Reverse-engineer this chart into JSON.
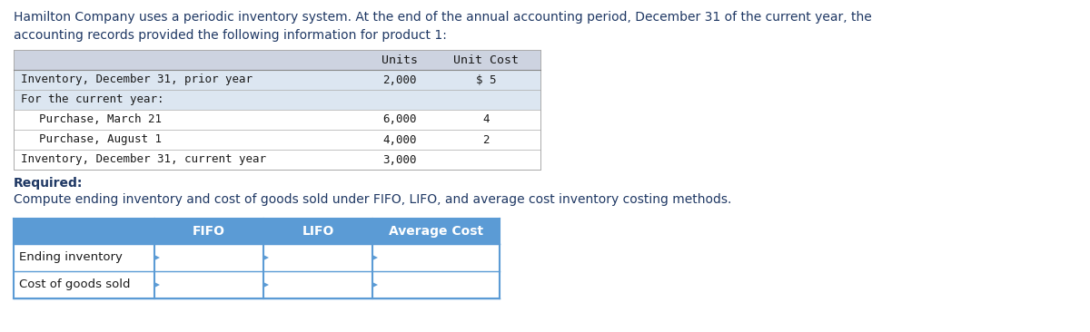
{
  "title_line1": "Hamilton Company uses a periodic inventory system. At the end of the annual accounting period, December 31 of the current year, the",
  "title_line2": "accounting records provided the following information for product 1:",
  "info_table": {
    "col_headers": [
      "",
      "Units",
      "Unit Cost"
    ],
    "rows": [
      {
        "label": "Inventory, December 31, prior year",
        "units": "2,000",
        "unit_cost": "$ 5",
        "indent": 0
      },
      {
        "label": "For the current year:",
        "units": "",
        "unit_cost": "",
        "indent": 0
      },
      {
        "label": "Purchase, March 21",
        "units": "6,000",
        "unit_cost": "4",
        "indent": 1
      },
      {
        "label": "Purchase, August 1",
        "units": "4,000",
        "unit_cost": "2",
        "indent": 1
      },
      {
        "label": "Inventory, December 31, current year",
        "units": "3,000",
        "unit_cost": "",
        "indent": 0
      }
    ],
    "header_bg": "#cdd3e0",
    "row_bg_shaded": "#dce6f1",
    "row_bg_white": "#ffffff"
  },
  "required_label": "Required:",
  "required_text": "Compute ending inventory and cost of goods sold under FIFO, LIFO, and average cost inventory costing methods.",
  "result_table": {
    "col_headers": [
      "",
      "FIFO",
      "LIFO",
      "Average Cost"
    ],
    "rows": [
      "Ending inventory",
      "Cost of goods sold"
    ],
    "header_bg": "#5b9bd5",
    "header_text_color": "#ffffff",
    "row_bg": "#ffffff",
    "border_color": "#5b9bd5"
  },
  "title_color": "#1f3864",
  "table_text_color": "#1a1a1a",
  "required_color": "#1f3864",
  "bg_color": "#ffffff"
}
